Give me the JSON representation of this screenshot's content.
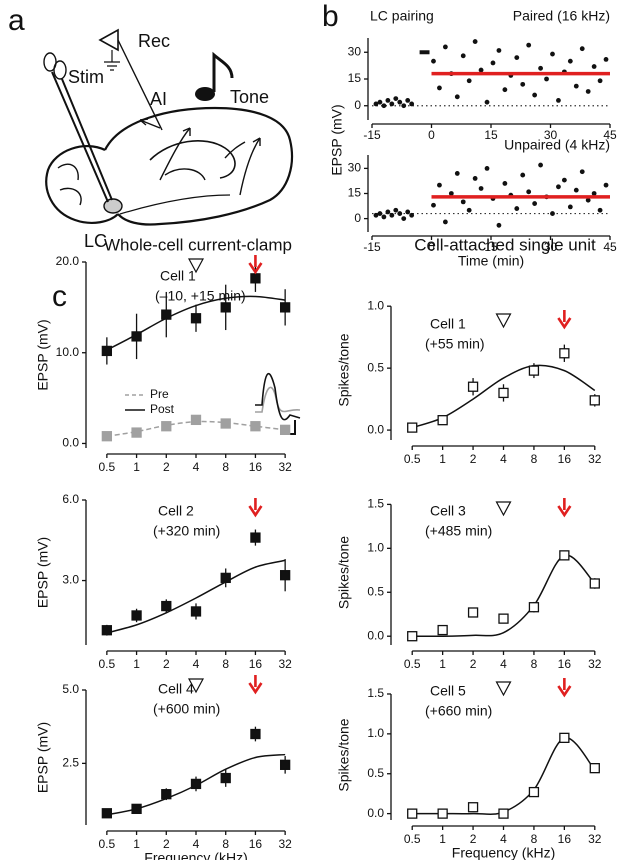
{
  "panel_labels": [
    "a",
    "b",
    "c"
  ],
  "diagram": {
    "labels": {
      "rec": "Rec",
      "stim": "Stim",
      "ai": "AI",
      "tone": "Tone",
      "lc": "LC"
    }
  },
  "column_titles": [
    "Whole-cell current-clamp",
    "Cell-attached single unit"
  ],
  "chart_data": [
    {
      "type": "scatter",
      "annotation": "LC pairing",
      "annotation_color": "#e02020",
      "title": "Paired (16 kHz)",
      "ylabel": "EPSP (mV)",
      "x": [
        -14,
        -13,
        -12,
        -11,
        -10,
        -9,
        -8,
        -7,
        -6,
        -5,
        0.5,
        2,
        3.5,
        5,
        6.5,
        8,
        9.5,
        11,
        12.5,
        14,
        15.5,
        17,
        18.5,
        20,
        21.5,
        23,
        24.5,
        26,
        27.5,
        29,
        30.5,
        32,
        33.5,
        35,
        36.5,
        38,
        39.5,
        41,
        42.5,
        44
      ],
      "y": [
        1,
        2,
        0,
        3,
        1,
        4,
        2,
        0,
        3,
        1,
        25,
        10,
        33,
        18,
        5,
        28,
        14,
        36,
        20,
        2,
        24,
        31,
        9,
        17,
        27,
        12,
        34,
        6,
        21,
        15,
        29,
        3,
        19,
        25,
        11,
        32,
        8,
        22,
        14,
        26
      ],
      "color": "#111111",
      "xlim": [
        -15,
        45
      ],
      "xticks": [
        -15,
        0,
        15,
        30,
        45
      ],
      "ylim": [
        -8,
        38
      ],
      "yticks": [
        0,
        15,
        30
      ],
      "mean_line": {
        "value": 18,
        "x": [
          0,
          45
        ],
        "color": "#e02020"
      },
      "baseline": 0,
      "pairing_bar": {
        "x": [
          -3,
          -0.5
        ],
        "y": 30
      }
    },
    {
      "type": "scatter",
      "title": "Unpaired (4 kHz)",
      "xlabel": "Time (min)",
      "x": [
        -14,
        -13,
        -12,
        -11,
        -10,
        -9,
        -8,
        -7,
        -6,
        -5,
        0.5,
        2,
        3.5,
        5,
        6.5,
        8,
        9.5,
        11,
        12.5,
        14,
        15.5,
        17,
        18.5,
        20,
        21.5,
        23,
        24.5,
        26,
        27.5,
        29,
        30.5,
        32,
        33.5,
        35,
        36.5,
        38,
        39.5,
        41,
        42.5,
        44
      ],
      "y": [
        2,
        3,
        1,
        4,
        2,
        5,
        3,
        0,
        4,
        2,
        8,
        20,
        -2,
        15,
        27,
        10,
        5,
        24,
        18,
        30,
        12,
        -4,
        21,
        14,
        6,
        26,
        16,
        9,
        32,
        13,
        3,
        19,
        23,
        7,
        17,
        28,
        11,
        15,
        5,
        20
      ],
      "color": "#111111",
      "xlim": [
        -15,
        45
      ],
      "xticks": [
        -15,
        0,
        15,
        30,
        45
      ],
      "ylim": [
        -8,
        38
      ],
      "yticks": [
        0,
        15,
        30
      ],
      "mean_line": {
        "value": 13,
        "x": [
          0,
          45
        ],
        "color": "#e02020"
      },
      "baseline": 3
    },
    {
      "type": "line",
      "title": "Cell 1",
      "subtitle": "(–10, +15 min)",
      "ylabel": "EPSP (mV)",
      "categories": [
        "0.5",
        "1",
        "2",
        "4",
        "8",
        "16",
        "32"
      ],
      "series": [
        {
          "name": "Post",
          "color": "#111111",
          "marker": "filled",
          "values": [
            10.2,
            11.8,
            14.2,
            13.8,
            15,
            18.2,
            15
          ],
          "errors": [
            1.5,
            2.5,
            2.5,
            1.5,
            2.5,
            1.5,
            2
          ],
          "fit": [
            10.3,
            12,
            13.8,
            15.2,
            16,
            16.2,
            15.8
          ]
        },
        {
          "name": "Pre",
          "color": "#a0a0a0",
          "marker": "filled",
          "dashed": true,
          "values": [
            0.8,
            1.2,
            1.9,
            2.6,
            2.2,
            1.9,
            1.5
          ],
          "errors": [
            0.2,
            0.2,
            0.2,
            0.2,
            0.2,
            0.2,
            0.2
          ],
          "fit": [
            0.8,
            1.3,
            2,
            2.4,
            2.3,
            1.9,
            1.5
          ]
        }
      ],
      "ylim": [
        -0.5,
        20
      ],
      "yticks": [
        {
          "value": 0,
          "label": "0.0"
        },
        {
          "value": 10,
          "label": "10.0"
        },
        {
          "value": 20,
          "label": "20.0"
        }
      ],
      "legend": true,
      "markers": [
        {
          "category": "4",
          "shape": "triangle",
          "color": "#111111"
        },
        {
          "category": "16",
          "shape": "arrow",
          "color": "#e02020"
        }
      ]
    },
    {
      "type": "line",
      "title": "Cell 1",
      "subtitle": "(+55 min)",
      "ylabel": "Spikes/tone",
      "categories": [
        "0.5",
        "1",
        "2",
        "4",
        "8",
        "16",
        "32"
      ],
      "series": [
        {
          "name": "Unit",
          "color": "#111111",
          "marker": "open",
          "values": [
            0.02,
            0.08,
            0.35,
            0.3,
            0.48,
            0.62,
            0.24
          ],
          "errors": [
            0.02,
            0.03,
            0.07,
            0.07,
            0.06,
            0.07,
            0.05
          ],
          "fit": [
            0.02,
            0.1,
            0.25,
            0.42,
            0.52,
            0.48,
            0.32
          ]
        }
      ],
      "ylim": [
        -0.08,
        1.05
      ],
      "yticks": [
        {
          "value": 0,
          "label": "0.0"
        },
        0.5,
        {
          "value": 1,
          "label": "1.0"
        }
      ],
      "markers": [
        {
          "category": "4",
          "shape": "triangle",
          "color": "#111111"
        },
        {
          "category": "16",
          "shape": "arrow",
          "color": "#e02020"
        }
      ]
    },
    {
      "type": "line",
      "title": "Cell 2",
      "subtitle": "(+320 min)",
      "ylabel": "EPSP (mV)",
      "categories": [
        "0.5",
        "1",
        "2",
        "4",
        "8",
        "16",
        "32"
      ],
      "series": [
        {
          "name": "Post",
          "color": "#111111",
          "marker": "filled",
          "values": [
            1.15,
            1.7,
            2.05,
            1.85,
            3.1,
            4.6,
            3.2
          ],
          "errors": [
            0.2,
            0.25,
            0.25,
            0.3,
            0.35,
            0.3,
            0.6
          ],
          "fit": [
            1.05,
            1.35,
            1.8,
            2.35,
            2.95,
            3.5,
            3.75
          ]
        }
      ],
      "ylim": [
        0.6,
        6
      ],
      "yticks": [
        {
          "value": 3,
          "label": "3.0"
        },
        {
          "value": 6,
          "label": "6.0"
        }
      ],
      "markers": [
        {
          "category": "16",
          "shape": "arrow",
          "color": "#e02020"
        }
      ]
    },
    {
      "type": "line",
      "title": "Cell 3",
      "subtitle": "(+485 min)",
      "ylabel": "Spikes/tone",
      "categories": [
        "0.5",
        "1",
        "2",
        "4",
        "8",
        "16",
        "32"
      ],
      "series": [
        {
          "name": "Unit",
          "color": "#111111",
          "marker": "open",
          "values": [
            0,
            0.07,
            0.27,
            0.2,
            0.33,
            0.92,
            0.6
          ],
          "errors": [
            0.02,
            0.02,
            0.05,
            0.05,
            0.06,
            0.04,
            0.06
          ],
          "fit": [
            0,
            0,
            0.01,
            0.04,
            0.35,
            0.92,
            0.6
          ]
        }
      ],
      "ylim": [
        -0.1,
        1.55
      ],
      "yticks": [
        {
          "value": 0,
          "label": "0.0"
        },
        0.5,
        {
          "value": 1,
          "label": "1.0"
        },
        1.5
      ],
      "markers": [
        {
          "category": "4",
          "shape": "triangle",
          "color": "#111111"
        },
        {
          "category": "16",
          "shape": "arrow",
          "color": "#e02020"
        }
      ]
    },
    {
      "type": "line",
      "title": "Cell 4",
      "subtitle": "(+600 min)",
      "ylabel": "EPSP (mV)",
      "xlabel": "Frequency (kHz)",
      "categories": [
        "0.5",
        "1",
        "2",
        "4",
        "8",
        "16",
        "32"
      ],
      "series": [
        {
          "name": "Post",
          "color": "#111111",
          "marker": "filled",
          "values": [
            0.8,
            0.95,
            1.45,
            1.8,
            2.0,
            3.5,
            2.45
          ],
          "errors": [
            0.1,
            0.1,
            0.2,
            0.25,
            0.3,
            0.25,
            0.3
          ],
          "fit": [
            0.75,
            0.95,
            1.3,
            1.75,
            2.3,
            2.7,
            2.8
          ]
        }
      ],
      "ylim": [
        0.4,
        5
      ],
      "yticks": [
        2.5,
        {
          "value": 5,
          "label": "5.0"
        }
      ],
      "markers": [
        {
          "category": "4",
          "shape": "triangle",
          "color": "#111111"
        },
        {
          "category": "16",
          "shape": "arrow",
          "color": "#e02020"
        }
      ]
    },
    {
      "type": "line",
      "title": "Cell 5",
      "subtitle": "(+660 min)",
      "ylabel": "Spikes/tone",
      "xlabel": "Frequency (kHz)",
      "categories": [
        "0.5",
        "1",
        "2",
        "4",
        "8",
        "16",
        "32"
      ],
      "series": [
        {
          "name": "Unit",
          "color": "#111111",
          "marker": "open",
          "values": [
            0,
            0,
            0.08,
            0,
            0.27,
            0.95,
            0.57
          ],
          "errors": [
            0.02,
            0.02,
            0.04,
            0.02,
            0.05,
            0.03,
            0.06
          ],
          "fit": [
            0,
            0,
            0,
            0.02,
            0.3,
            0.95,
            0.55
          ]
        }
      ],
      "ylim": [
        -0.08,
        1.55
      ],
      "yticks": [
        {
          "value": 0,
          "label": "0.0"
        },
        0.5,
        {
          "value": 1,
          "label": "1.0"
        },
        1.5
      ],
      "markers": [
        {
          "category": "4",
          "shape": "triangle",
          "color": "#111111"
        },
        {
          "category": "16",
          "shape": "arrow",
          "color": "#e02020"
        }
      ]
    }
  ]
}
